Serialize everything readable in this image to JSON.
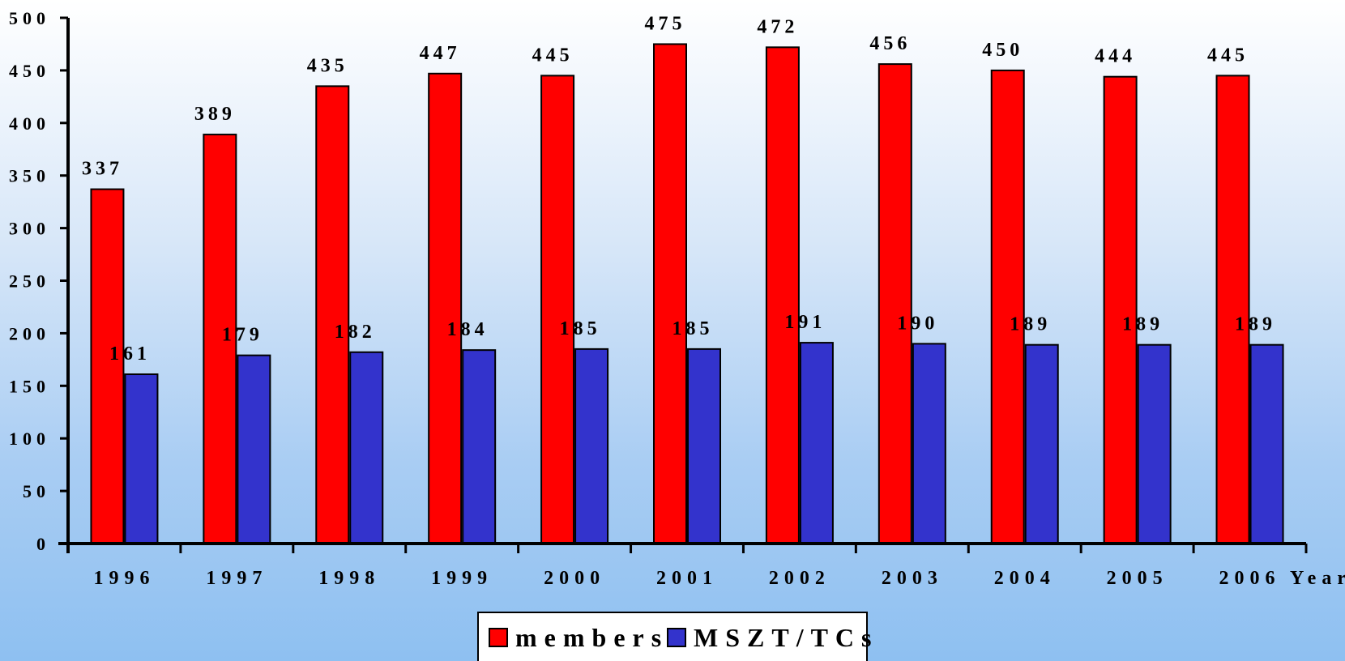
{
  "chart_data": {
    "type": "bar",
    "categories": [
      "1996",
      "1997",
      "1998",
      "1999",
      "2000",
      "2001",
      "2002",
      "2003",
      "2004",
      "2005",
      "2006"
    ],
    "series": [
      {
        "name": "members",
        "color": "#ff0000",
        "values": [
          337,
          389,
          435,
          447,
          445,
          475,
          472,
          456,
          450,
          444,
          445
        ]
      },
      {
        "name": "MSZT/TCs",
        "color": "#3333cc",
        "values": [
          161,
          179,
          182,
          184,
          185,
          185,
          191,
          190,
          189,
          189,
          189
        ]
      }
    ],
    "xlabel": "Year",
    "ylabel": "",
    "ylim": [
      0,
      500
    ],
    "yticks": [
      0,
      50,
      100,
      150,
      200,
      250,
      300,
      350,
      400,
      450,
      500
    ],
    "legend_position": "bottom-center",
    "grid": false
  }
}
